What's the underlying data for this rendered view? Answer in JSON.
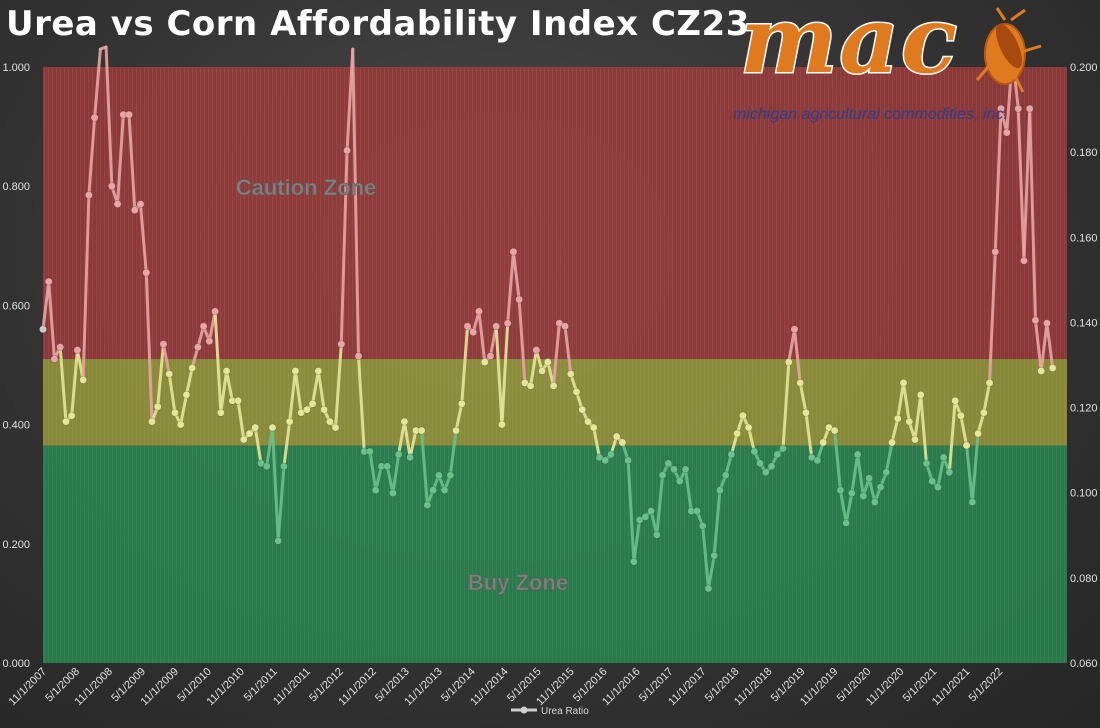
{
  "title": "Urea vs Corn Affordability Index CZ23",
  "logo": {
    "word": "mac",
    "subtitle": "michigan agricultural commodities, inc."
  },
  "colors": {
    "caution_zone": "#a03a3a",
    "neutral_zone": "#9c9c3c",
    "buy_zone": "#2a8a52",
    "line_in_caution": "#e8a5a5",
    "line_in_neutral": "#e6e69a",
    "line_in_buy": "#6cc08c",
    "first_point": "#cccccc",
    "logo_orange": "#e07a1f",
    "logo_blue": "#2b3f8c"
  },
  "chart_data": {
    "type": "line",
    "title": "Urea vs Corn Affordability Index CZ23",
    "zones": [
      {
        "label": "Caution Zone",
        "from": 0.51,
        "to": 1.0
      },
      {
        "label": "",
        "from": 0.365,
        "to": 0.51
      },
      {
        "label": "Buy Zone",
        "from": 0.0,
        "to": 0.365
      }
    ],
    "y_left": {
      "min": 0,
      "max": 1.0,
      "ticks": [
        "0.000",
        "0.200",
        "0.400",
        "0.600",
        "0.800",
        "1.000"
      ]
    },
    "y_right": {
      "min": 0.06,
      "max": 0.2,
      "ticks": [
        "0.060",
        "0.080",
        "0.100",
        "0.120",
        "0.140",
        "0.160",
        "0.180",
        "0.200"
      ]
    },
    "x_tick_labels": [
      "11/1/2007",
      "5/1/2008",
      "11/1/2008",
      "5/1/2009",
      "11/1/2009",
      "5/1/2010",
      "11/1/2010",
      "5/1/2011",
      "11/1/2011",
      "5/1/2012",
      "11/1/2012",
      "5/1/2013",
      "11/1/2013",
      "5/1/2014",
      "11/1/2014",
      "5/1/2015",
      "11/1/2015",
      "5/1/2016",
      "11/1/2016",
      "5/1/2017",
      "11/1/2017",
      "5/1/2018",
      "11/1/2018",
      "5/1/2019",
      "11/1/2019",
      "5/1/2020",
      "11/1/2020",
      "5/1/2021",
      "11/1/2021",
      "5/1/2022"
    ],
    "x_start": "11/1/2007",
    "x_end": "8/1/2022",
    "legend": {
      "position": "bottom",
      "entries": [
        "Urea Ratio"
      ]
    },
    "series": [
      {
        "name": "Urea Ratio",
        "values": [
          0.56,
          0.64,
          0.51,
          0.53,
          0.405,
          0.415,
          0.525,
          0.475,
          0.785,
          0.915,
          1.03,
          1.04,
          0.8,
          0.77,
          0.92,
          0.92,
          0.76,
          0.77,
          0.655,
          0.405,
          0.43,
          0.535,
          0.485,
          0.42,
          0.4,
          0.45,
          0.495,
          0.53,
          0.565,
          0.54,
          0.59,
          0.42,
          0.49,
          0.44,
          0.44,
          0.375,
          0.385,
          0.395,
          0.335,
          0.33,
          0.395,
          0.205,
          0.33,
          0.405,
          0.49,
          0.42,
          0.425,
          0.435,
          0.49,
          0.425,
          0.405,
          0.395,
          0.535,
          0.86,
          1.03,
          0.515,
          0.355,
          0.355,
          0.29,
          0.33,
          0.33,
          0.285,
          0.35,
          0.405,
          0.345,
          0.39,
          0.39,
          0.265,
          0.29,
          0.315,
          0.29,
          0.315,
          0.39,
          0.435,
          0.565,
          0.555,
          0.59,
          0.505,
          0.515,
          0.565,
          0.4,
          0.57,
          0.69,
          0.61,
          0.47,
          0.465,
          0.525,
          0.49,
          0.505,
          0.465,
          0.57,
          0.565,
          0.485,
          0.455,
          0.425,
          0.405,
          0.395,
          0.345,
          0.34,
          0.35,
          0.38,
          0.37,
          0.34,
          0.17,
          0.24,
          0.245,
          0.255,
          0.215,
          0.315,
          0.335,
          0.325,
          0.305,
          0.325,
          0.255,
          0.255,
          0.23,
          0.125,
          0.18,
          0.29,
          0.315,
          0.35,
          0.385,
          0.415,
          0.395,
          0.355,
          0.335,
          0.32,
          0.33,
          0.35,
          0.36,
          0.505,
          0.56,
          0.47,
          0.42,
          0.345,
          0.34,
          0.37,
          0.395,
          0.39,
          0.29,
          0.235,
          0.285,
          0.35,
          0.28,
          0.31,
          0.27,
          0.295,
          0.32,
          0.37,
          0.41,
          0.47,
          0.405,
          0.375,
          0.45,
          0.335,
          0.305,
          0.295,
          0.345,
          0.32,
          0.44,
          0.415,
          0.365,
          0.27,
          0.385,
          0.42,
          0.47,
          0.69,
          0.93,
          0.89,
          1.02,
          0.93,
          0.675,
          0.93,
          0.575,
          0.49,
          0.57,
          0.495
        ]
      }
    ]
  }
}
